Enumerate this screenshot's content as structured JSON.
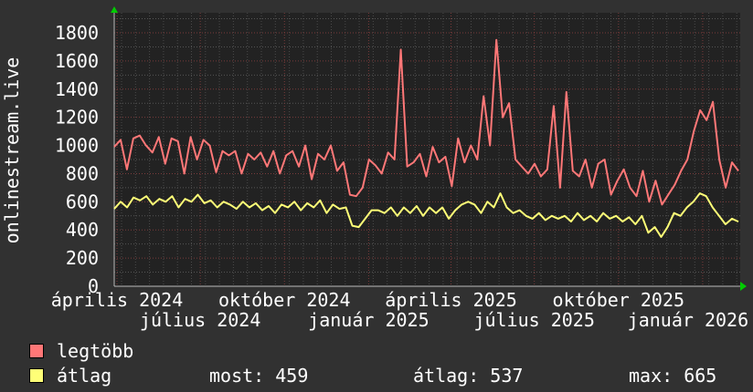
{
  "chart_data": {
    "type": "line",
    "title": "",
    "ylabel": "onlinestream.live",
    "xlabel": "",
    "ylim": [
      0,
      1800
    ],
    "yticks": [
      "0",
      "200",
      "400",
      "600",
      "800",
      "1000",
      "1200",
      "1400",
      "1600",
      "1800"
    ],
    "xlim": [
      "2024-03-29",
      "2026-02-09"
    ],
    "xticks": [
      "április 2024",
      "július 2024",
      "október 2024",
      "január 2025",
      "április 2025",
      "július 2025",
      "október 2025",
      "január 2026"
    ],
    "grid": true,
    "series": [
      {
        "name": "legtöbb",
        "color": "#ff7777",
        "values": [
          990,
          1040,
          830,
          1050,
          1070,
          1000,
          950,
          1060,
          870,
          1050,
          1030,
          800,
          1060,
          900,
          1040,
          1000,
          810,
          960,
          930,
          960,
          800,
          940,
          900,
          950,
          850,
          960,
          800,
          930,
          960,
          850,
          1000,
          760,
          940,
          900,
          1000,
          820,
          880,
          650,
          640,
          700,
          900,
          860,
          800,
          950,
          900,
          1680,
          850,
          880,
          940,
          780,
          990,
          880,
          920,
          710,
          1050,
          880,
          1000,
          900,
          1350,
          1000,
          1750,
          1200,
          1300,
          900,
          850,
          800,
          870,
          780,
          830,
          1280,
          700,
          1380,
          820,
          780,
          900,
          700,
          870,
          900,
          650,
          750,
          830,
          700,
          640,
          820,
          600,
          750,
          580,
          650,
          720,
          820,
          900,
          1100,
          1250,
          1180,
          1310,
          900,
          700,
          880,
          820
        ]
      },
      {
        "name": "átlag",
        "color": "#ffff77",
        "values": [
          550,
          600,
          560,
          630,
          610,
          640,
          580,
          620,
          600,
          640,
          560,
          620,
          600,
          650,
          590,
          610,
          560,
          600,
          580,
          550,
          600,
          560,
          590,
          540,
          570,
          520,
          580,
          560,
          600,
          540,
          590,
          560,
          610,
          520,
          580,
          550,
          560,
          430,
          420,
          480,
          540,
          540,
          520,
          560,
          500,
          560,
          520,
          570,
          500,
          560,
          520,
          560,
          480,
          540,
          580,
          600,
          580,
          520,
          600,
          560,
          660,
          560,
          520,
          540,
          500,
          480,
          520,
          470,
          500,
          480,
          500,
          460,
          520,
          470,
          500,
          460,
          520,
          480,
          500,
          460,
          490,
          440,
          500,
          380,
          420,
          350,
          420,
          520,
          500,
          560,
          600,
          660,
          640,
          560,
          500,
          440,
          480,
          459
        ]
      }
    ]
  },
  "legend": {
    "items": [
      {
        "label": "legtöbb",
        "color": "#ff7777"
      },
      {
        "label": "átlag",
        "color": "#ffff77"
      }
    ],
    "most": "most: 459",
    "atlag": "átlag: 537",
    "max": "max: 665"
  }
}
